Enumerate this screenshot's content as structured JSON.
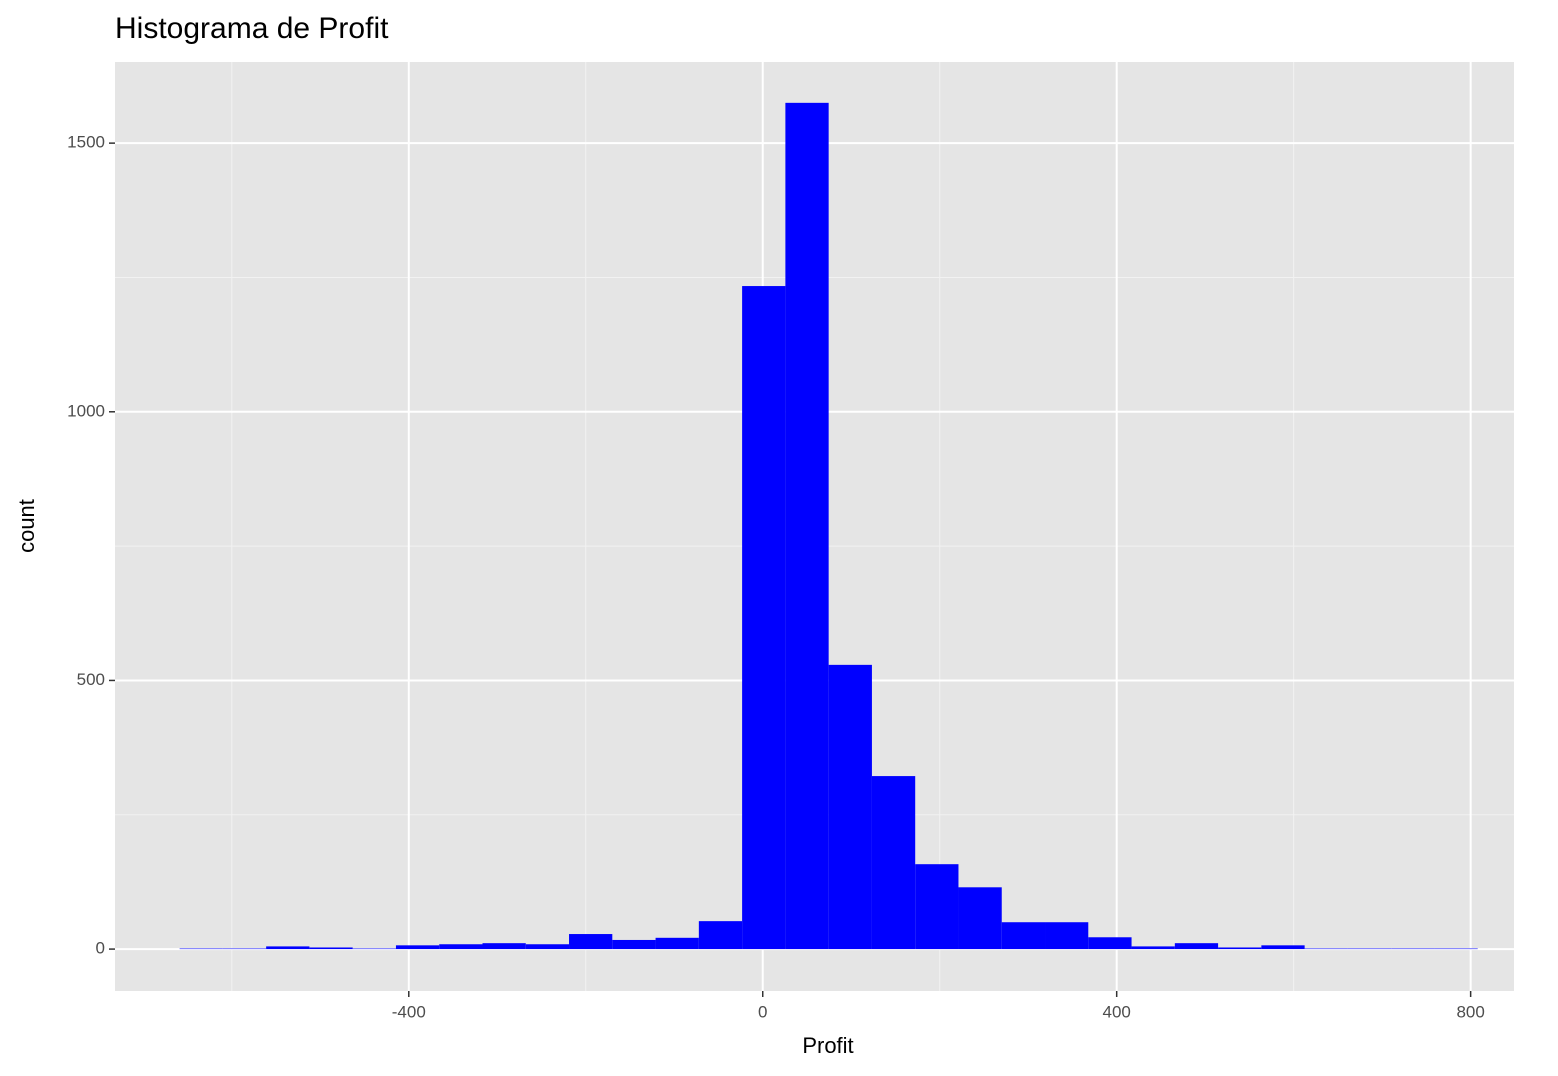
{
  "chart_data": {
    "type": "histogram",
    "title": "Histograma de Profit",
    "x_label": "Profit",
    "y_label": "count",
    "bins": [
      -659,
      -610.1,
      -561.2,
      -512.3,
      -463.4,
      -414.5,
      -365.6,
      -316.7,
      -267.8,
      -218.9,
      -170,
      -121.1,
      -72.2,
      -23.3,
      25.6,
      74.5,
      123.4,
      172.3,
      221.2,
      270.1,
      319,
      367.9,
      416.8,
      465.7,
      514.6,
      563.5,
      612.4,
      661.3,
      710.2,
      759.1,
      808
    ],
    "values": [
      1,
      1,
      5,
      3,
      1,
      7,
      9,
      11,
      9,
      28,
      17,
      21,
      52,
      1234,
      1575,
      529,
      322,
      158,
      115,
      50,
      50,
      22,
      5,
      11,
      3,
      7,
      1,
      1,
      1,
      1
    ],
    "color": "#0000ff",
    "xlim": [
      -732,
      849
    ],
    "ylim": [
      -78,
      1651
    ],
    "xticks": [
      -400,
      0,
      400,
      800
    ],
    "yticks": [
      0,
      500,
      1000,
      1500
    ],
    "x_minor_grid": [
      -600,
      -200,
      200,
      600
    ],
    "y_minor_grid": [
      250,
      750,
      1250
    ],
    "grid": true
  }
}
